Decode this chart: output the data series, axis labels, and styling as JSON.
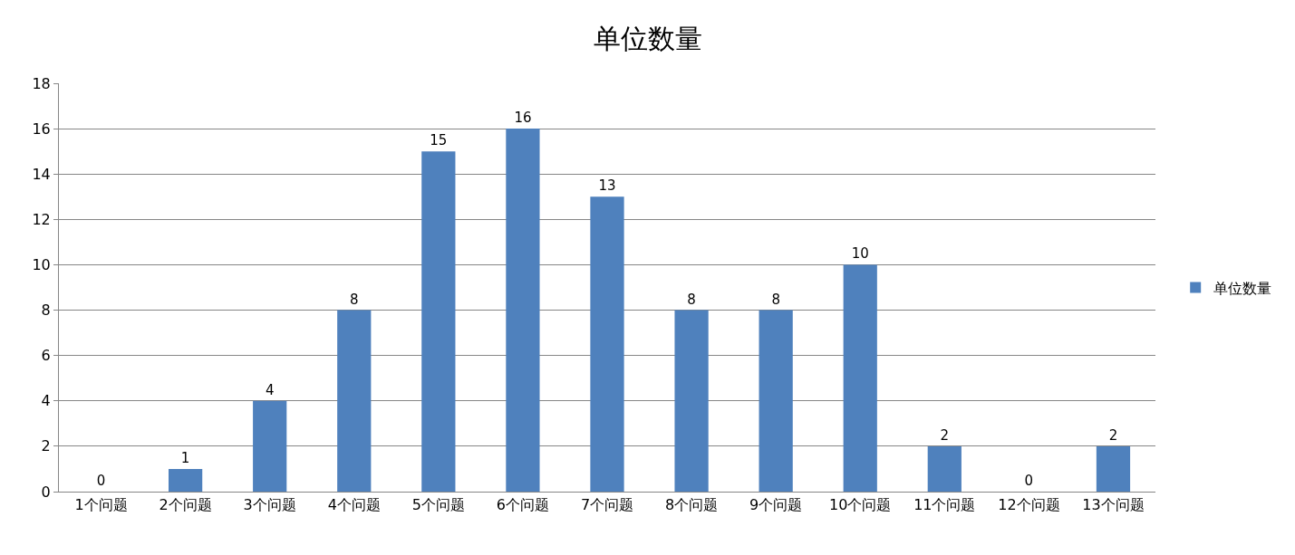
{
  "chart_data": {
    "type": "bar",
    "title": "单位数量",
    "categories": [
      "1个问题",
      "2个问题",
      "3个问题",
      "4个问题",
      "5个问题",
      "6个问题",
      "7个问题",
      "8个问题",
      "9个问题",
      "10个问题",
      "11个问题",
      "12个问题",
      "13个问题"
    ],
    "series": [
      {
        "name": "单位数量",
        "color": "#4f81bd",
        "values": [
          0,
          1,
          4,
          8,
          15,
          16,
          13,
          8,
          8,
          10,
          2,
          0,
          2
        ]
      }
    ],
    "ylim": [
      0,
      18
    ],
    "yticks": [
      0,
      2,
      4,
      6,
      8,
      10,
      12,
      14,
      16,
      18
    ],
    "grid": "y",
    "legend": "right",
    "data_labels": true
  }
}
